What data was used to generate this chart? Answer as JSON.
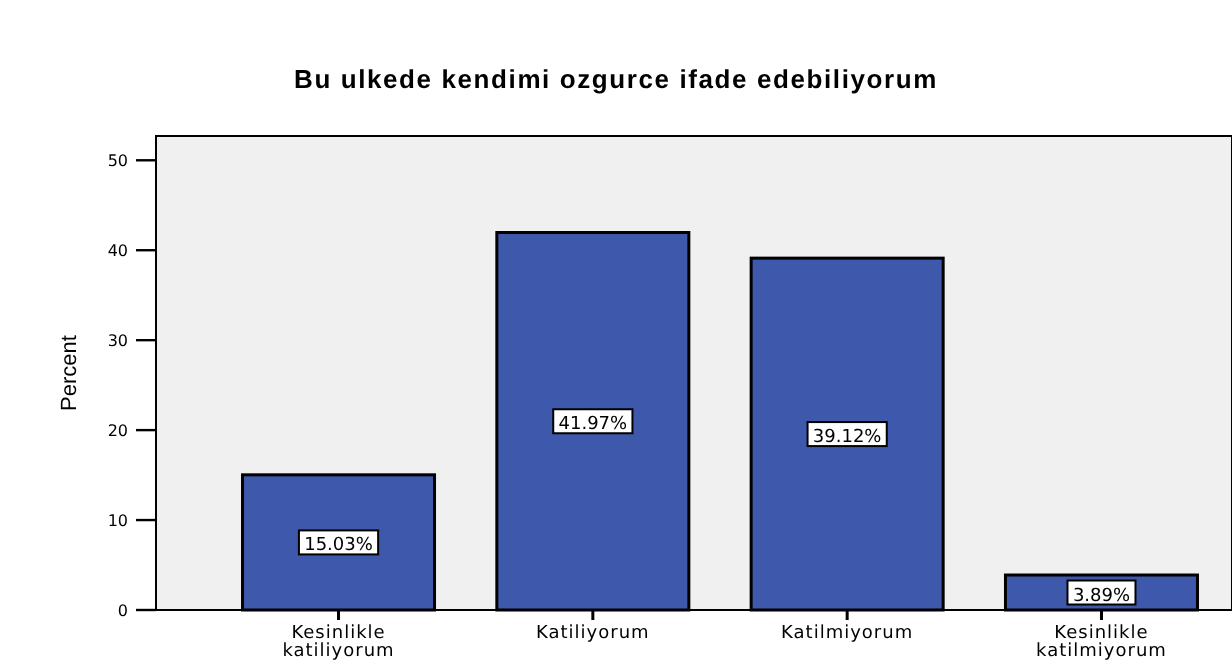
{
  "chart_data": {
    "type": "bar",
    "title": "Bu ulkede kendimi ozgurce ifade edebiliyorum",
    "ylabel": "Percent",
    "categories": [
      "Kesinlikle katiliyorum",
      "Katiliyorum",
      "Katilmiyorum",
      "Kesinlikle katilmiyorum"
    ],
    "values": [
      15.03,
      41.97,
      39.12,
      3.89
    ],
    "value_labels": [
      "15.03%",
      "41.97%",
      "39.12%",
      "3.89%"
    ],
    "color": "#3e58ab",
    "ylim": [
      0,
      52.7
    ],
    "yticks": [
      0,
      10,
      20,
      30,
      40,
      50
    ],
    "grid": false
  }
}
